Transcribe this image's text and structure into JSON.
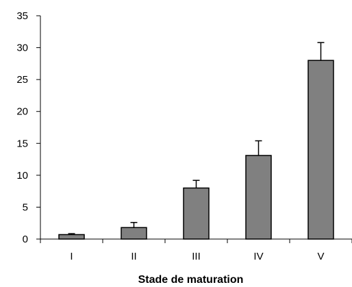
{
  "chart_data": {
    "type": "bar",
    "title": "",
    "xlabel": "Stade de maturation",
    "ylabel": "",
    "categories": [
      "I",
      "II",
      "III",
      "IV",
      "V"
    ],
    "values": [
      0.7,
      1.8,
      8.0,
      13.1,
      28.0
    ],
    "errors": [
      0.15,
      0.8,
      1.2,
      2.3,
      2.8
    ],
    "ylim": [
      0,
      35
    ],
    "yticks": [
      0,
      5,
      10,
      15,
      20,
      25,
      30,
      35
    ],
    "grid": false,
    "legend": "none",
    "colors": {
      "bar_fill": "#808080",
      "bar_stroke": "#000000",
      "axis": "#000000"
    }
  }
}
